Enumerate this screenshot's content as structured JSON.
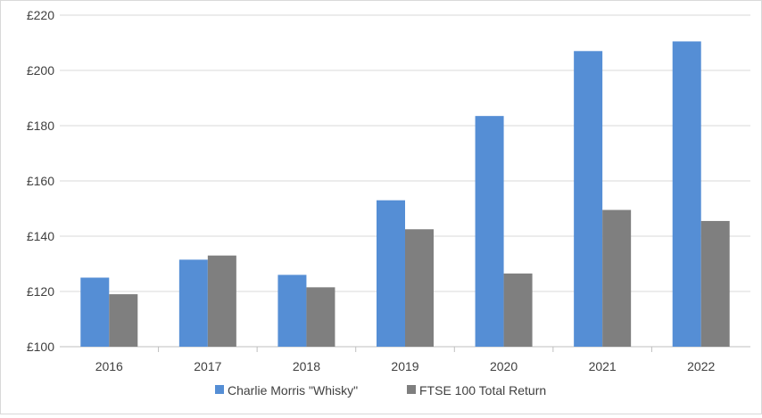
{
  "chart_data": {
    "type": "bar",
    "categories": [
      "2016",
      "2017",
      "2018",
      "2019",
      "2020",
      "2021",
      "2022"
    ],
    "series": [
      {
        "name": "Charlie Morris \"Whisky\"",
        "color": "#558ed5",
        "values": [
          125,
          131.5,
          126,
          153,
          183.5,
          207,
          210.5
        ]
      },
      {
        "name": "FTSE 100 Total Return",
        "color": "#7f7f7f",
        "values": [
          119,
          133,
          121.5,
          142.5,
          126.5,
          149.5,
          145.5
        ]
      }
    ],
    "ylim": [
      100,
      220
    ],
    "yticks": [
      "£100",
      "£120",
      "£140",
      "£160",
      "£180",
      "£200",
      "£220"
    ],
    "grid": true,
    "legend_position": "bottom",
    "title": "",
    "xlabel": "",
    "ylabel": ""
  }
}
